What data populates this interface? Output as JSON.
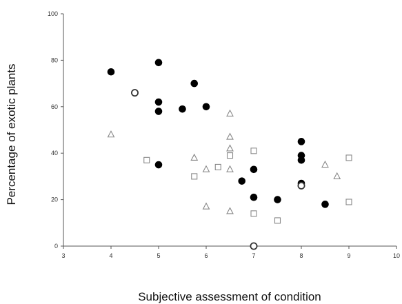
{
  "chart_data": {
    "type": "scatter",
    "title": "",
    "xlabel": "Subjective assessment of condition",
    "ylabel": "Percentage of exotic plants",
    "xlim": [
      3,
      10
    ],
    "ylim": [
      0,
      100
    ],
    "x_ticks": [
      "3",
      "4",
      "5",
      "6",
      "7",
      "8",
      "9",
      "10"
    ],
    "y_ticks": [
      "0",
      "20",
      "40",
      "60",
      "80",
      "100"
    ],
    "grid": false,
    "legend": "none",
    "colors": {
      "filled": "#000000",
      "open_stroke": "#888888",
      "axis": "#555555"
    },
    "series": [
      {
        "marker": "filled-circle",
        "points": [
          [
            4,
            75
          ],
          [
            5,
            79
          ],
          [
            5,
            62
          ],
          [
            5,
            58
          ],
          [
            5,
            35
          ],
          [
            5.5,
            59
          ],
          [
            5.75,
            70
          ],
          [
            6,
            60
          ],
          [
            6.75,
            28
          ],
          [
            7,
            33
          ],
          [
            7,
            21
          ],
          [
            7.5,
            20
          ],
          [
            8,
            45
          ],
          [
            8,
            39
          ],
          [
            8,
            37
          ],
          [
            8,
            27
          ],
          [
            8.5,
            18
          ]
        ]
      },
      {
        "marker": "open-circle",
        "points": [
          [
            4.5,
            66
          ],
          [
            7,
            0
          ],
          [
            8,
            26
          ]
        ]
      },
      {
        "marker": "open-triangle",
        "points": [
          [
            4,
            48
          ],
          [
            5.75,
            38
          ],
          [
            6,
            33
          ],
          [
            6,
            17
          ],
          [
            6.5,
            57
          ],
          [
            6.5,
            47
          ],
          [
            6.5,
            42
          ],
          [
            6.5,
            33
          ],
          [
            6.5,
            15
          ],
          [
            8.5,
            35
          ],
          [
            8.75,
            30
          ]
        ]
      },
      {
        "marker": "open-square",
        "points": [
          [
            4.75,
            37
          ],
          [
            5.75,
            30
          ],
          [
            6.25,
            34
          ],
          [
            6.5,
            39
          ],
          [
            7,
            41
          ],
          [
            7,
            14
          ],
          [
            7.5,
            11
          ],
          [
            9,
            38
          ],
          [
            9,
            19
          ]
        ]
      }
    ]
  }
}
